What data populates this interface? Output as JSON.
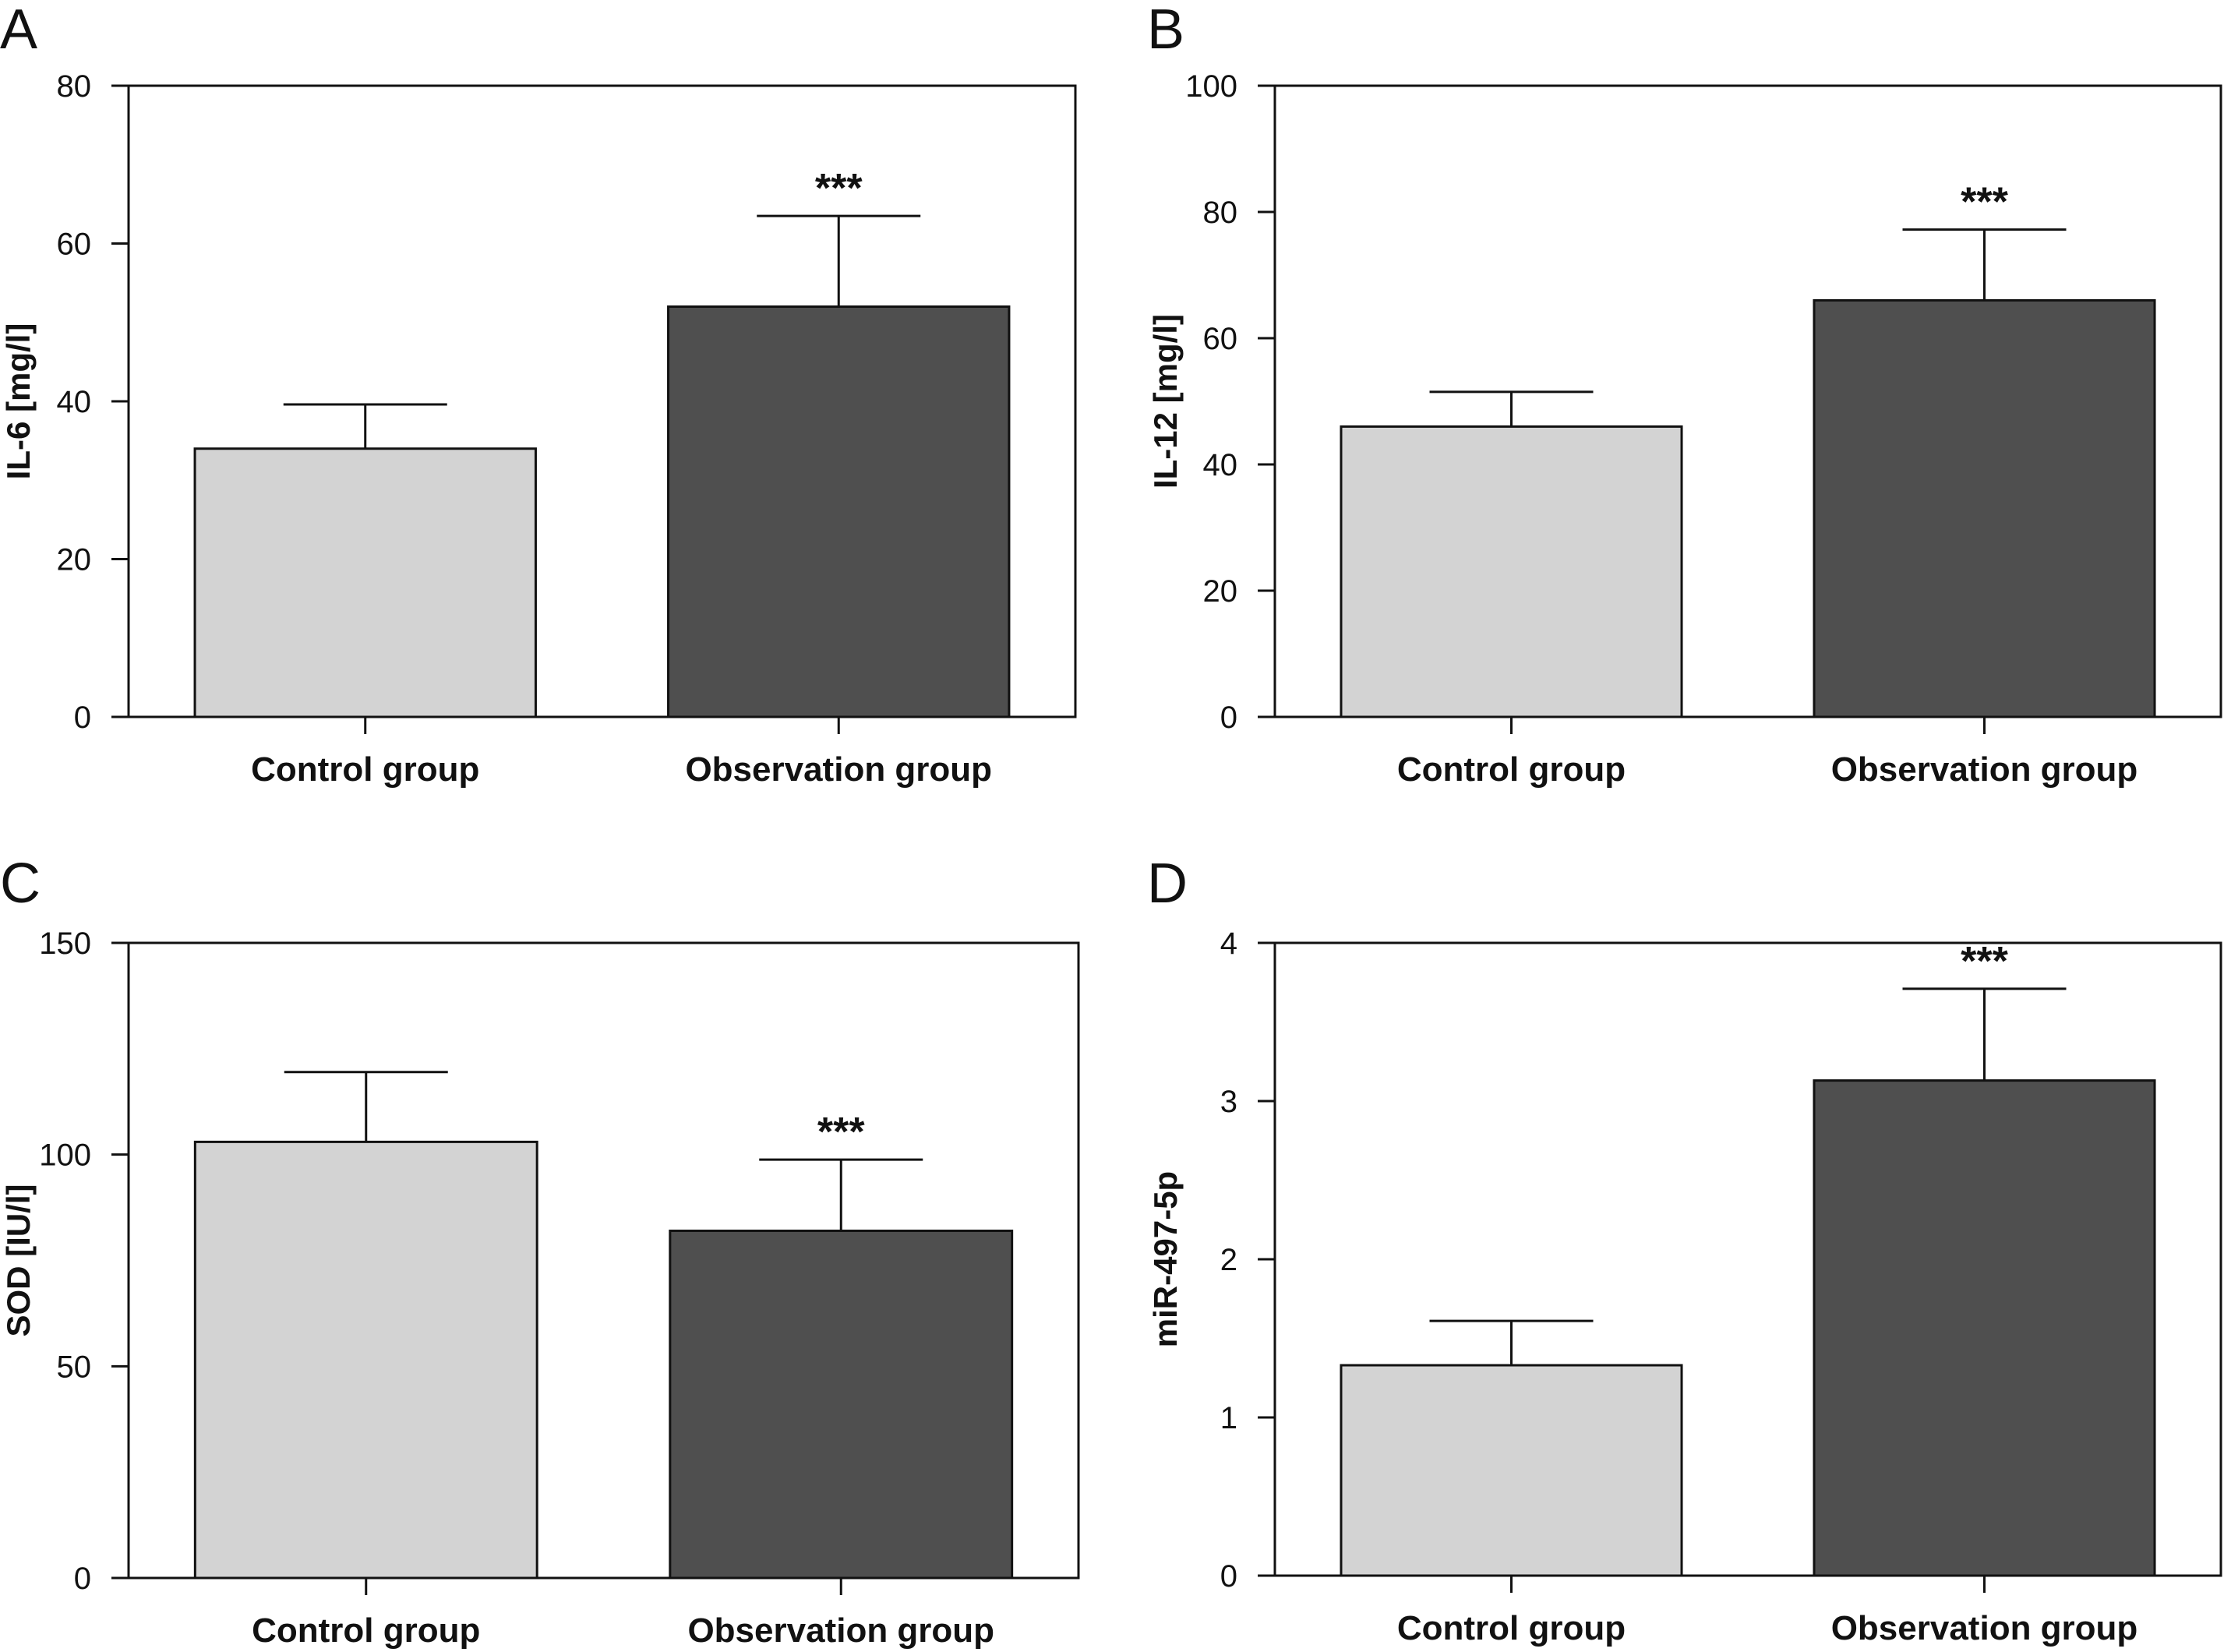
{
  "chart_data": [
    {
      "panel": "A",
      "type": "bar",
      "categories": [
        "Control group",
        "Observation group"
      ],
      "values": [
        34,
        52
      ],
      "errors": [
        5.6,
        11.5
      ],
      "significance": [
        "",
        "***"
      ],
      "ylabel": "IL-6 [mg/l]",
      "ylim": [
        0,
        80
      ],
      "yticks": [
        0,
        20,
        40,
        60,
        80
      ],
      "colors": [
        "#d3d3d3",
        "#4f4f4f"
      ]
    },
    {
      "panel": "B",
      "type": "bar",
      "categories": [
        "Control group",
        "Observation group"
      ],
      "values": [
        46,
        66
      ],
      "errors": [
        5.5,
        11.2
      ],
      "significance": [
        "",
        "***"
      ],
      "ylabel": "IL-12 [mg/l]",
      "ylim": [
        0,
        100
      ],
      "yticks": [
        0,
        20,
        40,
        60,
        80,
        100
      ],
      "colors": [
        "#d3d3d3",
        "#4f4f4f"
      ]
    },
    {
      "panel": "C",
      "type": "bar",
      "categories": [
        "Control group",
        "Observation group"
      ],
      "values": [
        103,
        82
      ],
      "errors": [
        16.5,
        16.8
      ],
      "significance": [
        "",
        "***"
      ],
      "ylabel": "SOD [IU/l]",
      "ylim": [
        0,
        150
      ],
      "yticks": [
        0,
        50,
        100,
        150
      ],
      "colors": [
        "#d3d3d3",
        "#4f4f4f"
      ]
    },
    {
      "panel": "D",
      "type": "bar",
      "categories": [
        "Control group",
        "Observation group"
      ],
      "values": [
        1.33,
        3.13
      ],
      "errors": [
        0.28,
        0.58
      ],
      "significance": [
        "",
        "***"
      ],
      "ylabel": "miR-497-5p",
      "ylim": [
        0,
        4
      ],
      "yticks": [
        0,
        1,
        2,
        3,
        4
      ],
      "colors": [
        "#d3d3d3",
        "#4f4f4f"
      ]
    }
  ]
}
